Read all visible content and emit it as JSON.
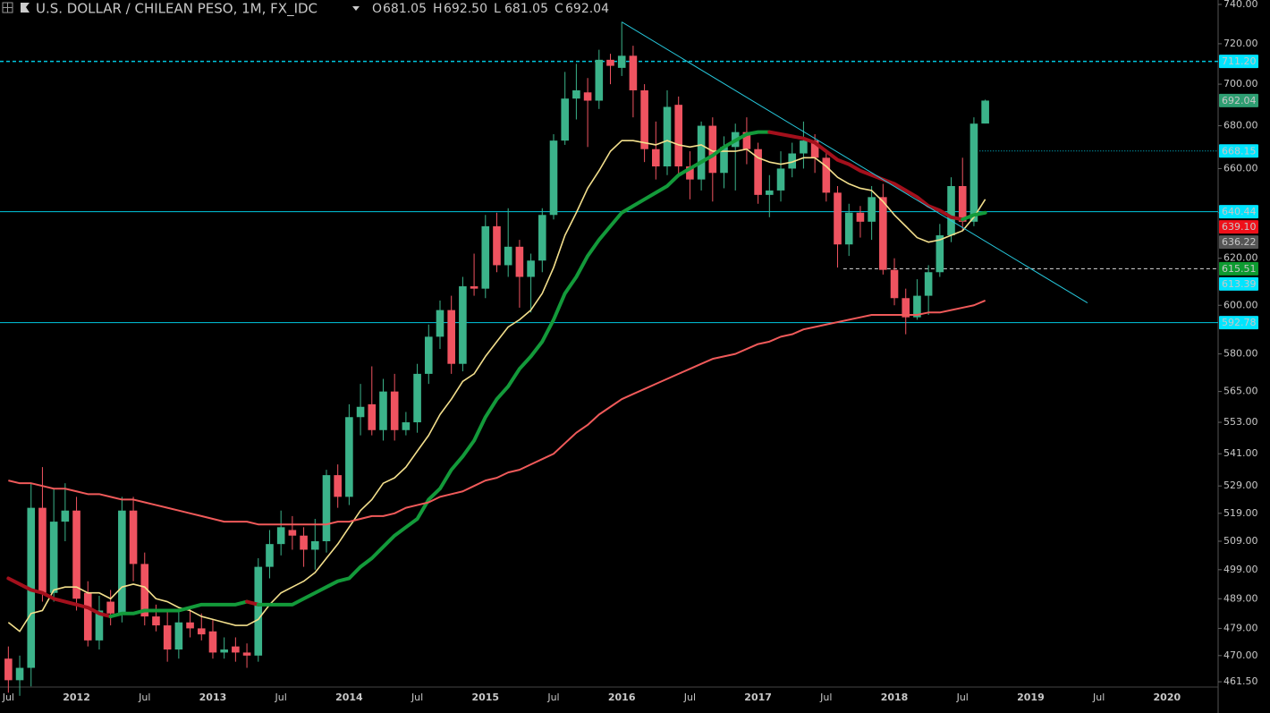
{
  "chart_data": {
    "type": "candlestick",
    "title": "U.S. DOLLAR / CHILEAN PESO, 1M, FX_IDC",
    "ohlc_header": [
      {
        "key": "O",
        "value": 681.05,
        "label": "681.05"
      },
      {
        "key": "H",
        "value": 692.5,
        "label": "692.50"
      },
      {
        "key": "L",
        "value": 681.05,
        "label": "681.05"
      },
      {
        "key": "C",
        "value": 692.04,
        "label": "692.04"
      }
    ],
    "log": true,
    "grid": false,
    "up_color": "#3bb38a",
    "down_color": "#ef5360",
    "categories": [
      "Jul",
      null,
      null,
      null,
      null,
      null,
      "2012",
      null,
      null,
      null,
      null,
      null,
      "Jul",
      null,
      null,
      null,
      null,
      null,
      "2013",
      null,
      null,
      null,
      null,
      null,
      "Jul",
      null,
      null,
      null,
      null,
      null,
      "2014",
      null,
      null,
      null,
      null,
      null,
      "Jul",
      null,
      null,
      null,
      null,
      null,
      "2015",
      null,
      null,
      null,
      null,
      null,
      "Jul",
      null,
      null,
      null,
      null,
      null,
      "2016",
      null,
      null,
      null,
      null,
      null,
      "Jul",
      null,
      null,
      null,
      null,
      null,
      "2017",
      null,
      null,
      null,
      null,
      null,
      "Jul",
      null,
      null,
      null,
      null,
      null,
      "2018",
      null,
      null,
      null,
      null,
      null,
      "Jul",
      null,
      null,
      null,
      null,
      null,
      "2019",
      null,
      null,
      null,
      null,
      null,
      "Jul",
      null,
      null,
      null,
      null,
      null,
      "2020",
      null,
      null,
      null,
      null
    ],
    "open": [
      469,
      462,
      466,
      521,
      491,
      516,
      520,
      491,
      475,
      488,
      484,
      520,
      501,
      483,
      480,
      472,
      481,
      479,
      478,
      471,
      473,
      471,
      470,
      500,
      508,
      513,
      511,
      506,
      509,
      533,
      525,
      555,
      560,
      550,
      565,
      550,
      553,
      572,
      587,
      598,
      576,
      608,
      607,
      634,
      617,
      625,
      612,
      619,
      639,
      673,
      693,
      696,
      692,
      712,
      708,
      714,
      697,
      669,
      661,
      690,
      661,
      655,
      680,
      658,
      670,
      677,
      669,
      648,
      650,
      660,
      667,
      673,
      665,
      649,
      626,
      640,
      636,
      647,
      615,
      603,
      595,
      604,
      614,
      630,
      652,
      636,
      681.05,
      null,
      null,
      null,
      null,
      null,
      null,
      null,
      null,
      null,
      null,
      null,
      null,
      null,
      null,
      null,
      null,
      null,
      null,
      null,
      null
    ],
    "high": [
      473,
      470,
      530,
      536,
      528,
      530,
      525,
      495,
      490,
      492,
      525,
      525,
      505,
      487,
      485,
      485,
      486,
      484,
      482,
      476,
      476,
      474,
      503,
      513,
      520,
      518,
      514,
      517,
      535,
      537,
      560,
      568,
      575,
      570,
      572,
      557,
      576,
      592,
      602,
      604,
      612,
      622,
      639,
      640,
      642,
      628,
      622,
      642,
      676,
      706,
      710,
      703,
      717,
      715,
      731,
      719,
      700,
      682,
      697,
      694,
      668,
      682,
      684,
      675,
      681,
      684,
      672,
      657,
      668,
      672,
      682,
      676,
      668,
      652,
      644,
      643,
      652,
      653,
      620,
      607,
      611,
      617,
      635,
      656,
      665,
      684,
      692.5,
      null,
      null,
      null,
      null,
      null,
      null,
      null,
      null,
      null,
      null,
      null,
      null,
      null,
      null,
      null,
      null,
      null,
      null,
      null,
      null
    ],
    "low": [
      458,
      457,
      460,
      488,
      488,
      509,
      485,
      473,
      472,
      480,
      481,
      495,
      480,
      478,
      468,
      469,
      476,
      475,
      469,
      469,
      468,
      466,
      468,
      496,
      504,
      506,
      500,
      499,
      505,
      521,
      522,
      548,
      548,
      546,
      546,
      548,
      549,
      568,
      582,
      572,
      573,
      604,
      603,
      614,
      612,
      599,
      597,
      614,
      637,
      671,
      683,
      670,
      688,
      700,
      704,
      684,
      663,
      655,
      657,
      656,
      646,
      650,
      645,
      651,
      650,
      662,
      644,
      638,
      645,
      656,
      660,
      658,
      645,
      616,
      621,
      629,
      628,
      613,
      600,
      588,
      594,
      596,
      612,
      627,
      632,
      634,
      681.05,
      null,
      null,
      null,
      null,
      null,
      null,
      null,
      null,
      null,
      null,
      null,
      null,
      null,
      null,
      null,
      null,
      null,
      null,
      null,
      null
    ],
    "close": [
      462,
      466,
      521,
      491,
      516,
      520,
      489,
      475,
      485,
      484,
      520,
      501,
      483,
      480,
      472,
      481,
      479,
      477,
      471,
      472,
      471,
      470,
      500,
      508,
      514,
      511,
      506,
      509,
      533,
      525,
      555,
      559,
      550,
      565,
      550,
      553,
      572,
      587,
      598,
      576,
      608,
      607,
      634,
      617,
      625,
      612,
      619,
      639,
      673,
      693,
      697,
      692,
      712,
      709,
      714,
      697,
      669,
      661,
      689,
      661,
      655,
      680,
      658,
      670,
      677,
      669,
      648,
      650,
      660,
      667,
      673,
      665,
      649,
      626,
      640,
      636,
      647,
      615,
      603,
      595,
      604,
      614,
      630,
      652,
      636,
      681,
      692.04,
      null,
      null,
      null,
      null,
      null,
      null,
      null,
      null,
      null,
      null,
      null,
      null,
      null,
      null,
      null,
      null,
      null,
      null,
      null,
      null
    ],
    "moving_averages": [
      {
        "color": "#f3df8c",
        "width": 1.6,
        "values": [
          481,
          478,
          484,
          485,
          492,
          493,
          493,
          491,
          491,
          489,
          493,
          494,
          493,
          489,
          488,
          486,
          485,
          483,
          482,
          481,
          480,
          480,
          482,
          487,
          491,
          493,
          495,
          498,
          503,
          508,
          514,
          520,
          524,
          530,
          532,
          536,
          542,
          548,
          556,
          562,
          569,
          572,
          579,
          585,
          591,
          594,
          598,
          605,
          616,
          630,
          640,
          651,
          659,
          668,
          673,
          673,
          672,
          671,
          673,
          671,
          670,
          671,
          668,
          668,
          668,
          669,
          665,
          663,
          662,
          663,
          665,
          665,
          661,
          656,
          653,
          651,
          650,
          645,
          639,
          634,
          629,
          627,
          628,
          630,
          632,
          638,
          646,
          null,
          null,
          null,
          null,
          null,
          null,
          null,
          null,
          null,
          null,
          null,
          null,
          null,
          null,
          null,
          null,
          null,
          null,
          null,
          null
        ]
      },
      {
        "color": "#139a3a",
        "fall_color": "#a3101c",
        "width": 4,
        "values": [
          496,
          494,
          492,
          491,
          489,
          488,
          487,
          486,
          484,
          483,
          484,
          484,
          485,
          485,
          485,
          485,
          486,
          487,
          487,
          487,
          487,
          488,
          487,
          487,
          487,
          487,
          489,
          491,
          493,
          495,
          496,
          500,
          503,
          507,
          511,
          514,
          517,
          524,
          528,
          535,
          540,
          546,
          555,
          562,
          567,
          574,
          579,
          585,
          594,
          605,
          612,
          621,
          628,
          634,
          640,
          643,
          646,
          649,
          652,
          657,
          660,
          663,
          666,
          670,
          673,
          676,
          677,
          677,
          676,
          675,
          674,
          672,
          668,
          664,
          662,
          659,
          657,
          655,
          653,
          650,
          647,
          643,
          641,
          638,
          637,
          639,
          640,
          null,
          null,
          null,
          null,
          null,
          null,
          null,
          null,
          null,
          null,
          null,
          null,
          null,
          null,
          null,
          null,
          null,
          null,
          null,
          null
        ]
      },
      {
        "color": "#f05a5a",
        "width": 2,
        "values": [
          531,
          530,
          530,
          529,
          528,
          528,
          527,
          526,
          526,
          525,
          524,
          524,
          523,
          522,
          521,
          520,
          519,
          518,
          517,
          516,
          516,
          516,
          515,
          515,
          515,
          515,
          515,
          515,
          515,
          516,
          516,
          517,
          518,
          518,
          519,
          521,
          522,
          523,
          525,
          526,
          527,
          529,
          531,
          532,
          534,
          535,
          537,
          539,
          541,
          545,
          549,
          552,
          556,
          559,
          562,
          564,
          566,
          568,
          570,
          572,
          574,
          576,
          578,
          579,
          580,
          582,
          584,
          585,
          587,
          588,
          590,
          591,
          592,
          593,
          594,
          595,
          596,
          596,
          596,
          596,
          596,
          597,
          597,
          598,
          599,
          600,
          602,
          null,
          null,
          null,
          null,
          null,
          null,
          null,
          null,
          null,
          null,
          null,
          null,
          null,
          null,
          null,
          null,
          null,
          null,
          null,
          null
        ]
      }
    ],
    "trendline": {
      "x": [
        54,
        95
      ],
      "y": [
        731,
        601
      ],
      "color": "#26c6da"
    },
    "levels": [
      {
        "value": 711.2,
        "label": "711.20",
        "color": "#00e5ff",
        "text_color": "#000000",
        "line": "dashed",
        "line_color": "#00c8e0"
      },
      {
        "value": 692.04,
        "label": "692.04",
        "color": "#2e9e72",
        "text_color": "#ffffff",
        "line": "none"
      },
      {
        "value": 668.15,
        "label": "668.15",
        "color": "#00e5ff",
        "text_color": "#000000",
        "line": "dotted",
        "line_color": "#00c8e0",
        "line_start": 86
      },
      {
        "value": 640.44,
        "label": "640.44",
        "color": "#00e5ff",
        "text_color": "#000000",
        "line": "solid",
        "line_color": "#00c8e0"
      },
      {
        "value": 639.1,
        "label": "639.10",
        "color": "#f0101a",
        "text_color": "#ffffff",
        "line": "none"
      },
      {
        "value": 636.22,
        "label": "636.22",
        "color": "#555555",
        "text_color": "#ffffff",
        "line": "none"
      },
      {
        "value": 615.51,
        "label": "615.51",
        "color": "#0d9b30",
        "text_color": "#ffffff",
        "line": "dashed",
        "line_color": "#dddddd",
        "line_start": 74
      },
      {
        "value": 613.39,
        "label": "613.39",
        "color": "#00e5ff",
        "text_color": "#000000",
        "line": "none"
      },
      {
        "value": 592.78,
        "label": "592.78",
        "color": "#00e5ff",
        "text_color": "#000000",
        "line": "solid",
        "line_color": "#00c8e0"
      }
    ],
    "ylim": [
      459.8,
      742.3
    ],
    "yticks": [
      {
        "value": 461.5,
        "label": "461.50"
      },
      {
        "value": 470,
        "label": "470.00"
      },
      {
        "value": 479,
        "label": "479.00"
      },
      {
        "value": 489,
        "label": "489.00"
      },
      {
        "value": 499,
        "label": "499.00"
      },
      {
        "value": 509,
        "label": "509.00"
      },
      {
        "value": 519,
        "label": "519.00"
      },
      {
        "value": 529,
        "label": "529.00"
      },
      {
        "value": 541,
        "label": "541.00"
      },
      {
        "value": 553,
        "label": "553.00"
      },
      {
        "value": 565,
        "label": "565.00"
      },
      {
        "value": 580,
        "label": "580.00"
      },
      {
        "value": 600,
        "label": "600.00"
      },
      {
        "value": 620,
        "label": "620.00"
      },
      {
        "value": 640,
        "label": "640.00"
      },
      {
        "value": 660,
        "label": "660.00"
      },
      {
        "value": 680,
        "label": "680.00"
      },
      {
        "value": 700,
        "label": "700.00"
      },
      {
        "value": 720,
        "label": "720.00"
      },
      {
        "value": 740,
        "label": "740.00"
      }
    ]
  }
}
